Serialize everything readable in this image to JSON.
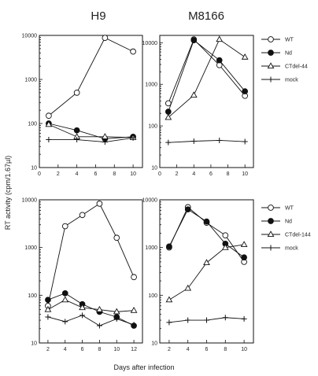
{
  "figure": {
    "col_titles": [
      "H9",
      "M8166"
    ],
    "ylabel": "RT activity (cpm/1.67µl)",
    "xlabel": "Days after infection"
  },
  "legends": [
    {
      "entries": [
        {
          "label": "WT",
          "marker": "open-circle"
        },
        {
          "label": "Nd",
          "marker": "filled-circle"
        },
        {
          "label": "CTdel-44",
          "marker": "open-triangle"
        },
        {
          "label": "mock",
          "marker": "plus"
        }
      ]
    },
    {
      "entries": [
        {
          "label": "WT",
          "marker": "open-circle"
        },
        {
          "label": "Nd",
          "marker": "filled-circle"
        },
        {
          "label": "CTdel-144",
          "marker": "open-triangle"
        },
        {
          "label": "mock",
          "marker": "plus"
        }
      ]
    }
  ],
  "chart_data": [
    {
      "type": "line",
      "panel": "top-left",
      "scale_y": "log",
      "ylim": [
        10,
        10000
      ],
      "xlim": [
        0,
        11
      ],
      "yticks": [
        "10",
        "100",
        "1000",
        "10000"
      ],
      "xticks": [
        "0",
        "2",
        "4",
        "6",
        "8",
        "10"
      ],
      "series": [
        {
          "name": "WT",
          "marker": "open-circle",
          "x": [
            1,
            4,
            7,
            10
          ],
          "y": [
            150,
            500,
            8800,
            4300
          ]
        },
        {
          "name": "Nd",
          "marker": "filled-circle",
          "x": [
            1,
            4,
            7,
            10
          ],
          "y": [
            100,
            70,
            45,
            50
          ]
        },
        {
          "name": "CTdel-44",
          "marker": "open-triangle",
          "x": [
            1,
            4,
            7,
            10
          ],
          "y": [
            95,
            50,
            50,
            48
          ]
        },
        {
          "name": "mock",
          "marker": "plus",
          "x": [
            1,
            4,
            7,
            10
          ],
          "y": [
            43,
            43,
            38,
            47
          ]
        }
      ]
    },
    {
      "type": "line",
      "panel": "top-right",
      "scale_y": "log",
      "ylim": [
        10,
        15000
      ],
      "xlim": [
        0,
        11
      ],
      "yticks": [
        "10",
        "100",
        "1000",
        "10000"
      ],
      "xticks": [
        "0",
        "2",
        "4",
        "6",
        "8",
        "10"
      ],
      "series": [
        {
          "name": "WT",
          "marker": "open-circle",
          "x": [
            1,
            4,
            7,
            10
          ],
          "y": [
            350,
            12000,
            2900,
            530
          ]
        },
        {
          "name": "Nd",
          "marker": "filled-circle",
          "x": [
            1,
            4,
            7,
            10
          ],
          "y": [
            220,
            11500,
            3800,
            680
          ]
        },
        {
          "name": "CTdel-44",
          "marker": "open-triangle",
          "x": [
            1,
            4,
            7,
            10
          ],
          "y": [
            160,
            550,
            12000,
            4500
          ]
        },
        {
          "name": "mock",
          "marker": "plus",
          "x": [
            1,
            4,
            7,
            10
          ],
          "y": [
            40,
            43,
            45,
            42
          ]
        }
      ]
    },
    {
      "type": "line",
      "panel": "bottom-left",
      "scale_y": "log",
      "ylim": [
        10,
        10000
      ],
      "xlim": [
        1,
        13
      ],
      "yticks": [
        "10",
        "100",
        "1000",
        "10000"
      ],
      "xticks": [
        "2",
        "4",
        "6",
        "8",
        "10",
        "12"
      ],
      "series": [
        {
          "name": "WT",
          "marker": "open-circle",
          "x": [
            2,
            4,
            6,
            8,
            10,
            12
          ],
          "y": [
            60,
            2800,
            4800,
            8300,
            1600,
            240
          ]
        },
        {
          "name": "Nd",
          "marker": "filled-circle",
          "x": [
            2,
            4,
            6,
            8,
            10,
            12
          ],
          "y": [
            80,
            110,
            65,
            45,
            35,
            23
          ]
        },
        {
          "name": "CTdel-144",
          "marker": "open-triangle",
          "x": [
            2,
            4,
            6,
            8,
            10,
            12
          ],
          "y": [
            50,
            80,
            55,
            50,
            45,
            48
          ]
        },
        {
          "name": "mock",
          "marker": "plus",
          "x": [
            2,
            4,
            6,
            8,
            10,
            12
          ],
          "y": [
            35,
            28,
            38,
            23,
            32,
            24
          ]
        }
      ]
    },
    {
      "type": "line",
      "panel": "bottom-right",
      "scale_y": "log",
      "ylim": [
        10,
        10000
      ],
      "xlim": [
        1,
        11
      ],
      "yticks": [
        "10",
        "100",
        "1000",
        "10000"
      ],
      "xticks": [
        "2",
        "4",
        "6",
        "8",
        "10"
      ],
      "series": [
        {
          "name": "WT",
          "marker": "open-circle",
          "x": [
            2,
            4,
            6,
            8,
            10
          ],
          "y": [
            1000,
            7000,
            3300,
            1800,
            500
          ]
        },
        {
          "name": "Nd",
          "marker": "filled-circle",
          "x": [
            2,
            4,
            6,
            8,
            10
          ],
          "y": [
            1050,
            6300,
            3500,
            1200,
            620
          ]
        },
        {
          "name": "CTdel-144",
          "marker": "open-triangle",
          "x": [
            2,
            4,
            6,
            8,
            10
          ],
          "y": [
            80,
            140,
            480,
            1000,
            1150
          ]
        },
        {
          "name": "mock",
          "marker": "plus",
          "x": [
            2,
            4,
            6,
            8,
            10
          ],
          "y": [
            27,
            30,
            30,
            34,
            32
          ]
        }
      ]
    }
  ]
}
